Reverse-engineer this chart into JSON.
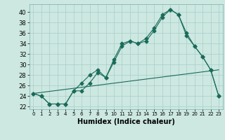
{
  "xlabel": "Humidex (Indice chaleur)",
  "background_color": "#cce8e0",
  "grid_color": "#aacccc",
  "line_color": "#1a6b5a",
  "xlim": [
    -0.5,
    23.5
  ],
  "ylim": [
    21.5,
    41.5
  ],
  "yticks": [
    22,
    24,
    26,
    28,
    30,
    32,
    34,
    36,
    38,
    40
  ],
  "xticks": [
    0,
    1,
    2,
    3,
    4,
    5,
    6,
    7,
    8,
    9,
    10,
    11,
    12,
    13,
    14,
    15,
    16,
    17,
    18,
    19,
    20,
    21,
    22,
    23
  ],
  "line1_x": [
    0,
    1,
    2,
    3,
    4,
    5,
    6,
    7,
    8,
    9,
    10,
    11,
    12,
    13,
    14,
    15,
    16,
    17,
    18,
    19,
    20,
    21,
    22,
    23
  ],
  "line1_y": [
    24.5,
    24,
    22.5,
    22.5,
    22.5,
    25,
    25,
    26.5,
    28.5,
    27.5,
    30.5,
    33.5,
    34.5,
    34,
    34.5,
    36.5,
    39,
    40.5,
    39.5,
    36,
    33.5,
    31.5,
    29,
    24
  ],
  "line2_x": [
    0,
    1,
    2,
    3,
    4,
    5,
    6,
    7,
    8,
    9,
    10,
    11,
    12,
    13,
    14,
    15,
    16,
    17,
    18,
    19,
    20,
    21,
    22,
    23
  ],
  "line2_y": [
    24.5,
    24,
    22.5,
    22.5,
    22.5,
    25,
    26.5,
    28,
    29,
    27.5,
    31,
    34,
    34.5,
    34,
    35,
    37,
    39.5,
    40.5,
    39.5,
    35.5,
    33.5,
    31.5,
    29,
    24
  ],
  "line3_x": [
    0,
    23
  ],
  "line3_y": [
    24.5,
    29
  ]
}
